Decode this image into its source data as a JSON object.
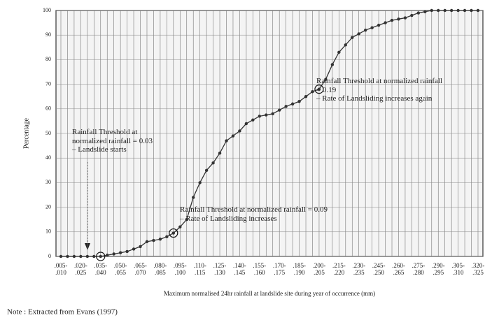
{
  "chart_data": {
    "type": "line",
    "y_label": "Percentage",
    "x_label": "Maximum normalised 24hr rainfall at landslide site during year of occurrence (mm)",
    "note": "Note : Extracted from Evans (1997)",
    "annotations": [
      "Rainfall Threshold at\nnormalized rainfall = 0.03\n– Landslide starts",
      "Rainfall Threshold at normalized rainfall = 0.09\n– Rate of Landsliding increases",
      "Rainfall Threshold at normalized rainfall\n= 0.19\n– Rate of Landsliding increases again"
    ],
    "categories": [
      ".005-\n.010",
      null,
      null,
      ".020-\n.025",
      null,
      null,
      ".035-\n.040",
      null,
      null,
      ".050-\n.055",
      null,
      null,
      ".065-\n.070",
      null,
      null,
      ".080-\n.085",
      null,
      null,
      ".095-\n.100",
      null,
      null,
      ".110-\n.115",
      null,
      null,
      ".125-\n.130",
      null,
      null,
      ".140-\n.145",
      null,
      null,
      ".155-\n.160",
      null,
      null,
      ".170-\n.175",
      null,
      null,
      ".185-\n.190",
      null,
      null,
      ".200-\n.205",
      null,
      null,
      ".215-\n.220",
      null,
      null,
      ".230-\n.235",
      null,
      null,
      ".245-\n.250",
      null,
      null,
      ".260-\n.265",
      null,
      null,
      ".275-\n.280",
      null,
      null,
      ".290-\n.295",
      null,
      null,
      ".305-\n.310",
      null,
      null,
      ".320-\n.325"
    ],
    "values": [
      0,
      0,
      0,
      0,
      0,
      0,
      0,
      0.5,
      1,
      1.5,
      2,
      3,
      4,
      6,
      6.5,
      7,
      8,
      9.5,
      12,
      15,
      24,
      30,
      35,
      38,
      42,
      47,
      49,
      51,
      54,
      55.5,
      57,
      57.5,
      58,
      59.5,
      61,
      62,
      63,
      65,
      67,
      68,
      72,
      78,
      83,
      86,
      89,
      90.5,
      92,
      93,
      94,
      95,
      96,
      96.5,
      97,
      98,
      99,
      99.5,
      100,
      100,
      100,
      100,
      100,
      100,
      100,
      100
    ],
    "color": "#333333",
    "ylim": [
      0,
      100
    ],
    "yticks": [
      0,
      10,
      20,
      30,
      40,
      50,
      60,
      70,
      80,
      90,
      100
    ],
    "grid": true
  }
}
